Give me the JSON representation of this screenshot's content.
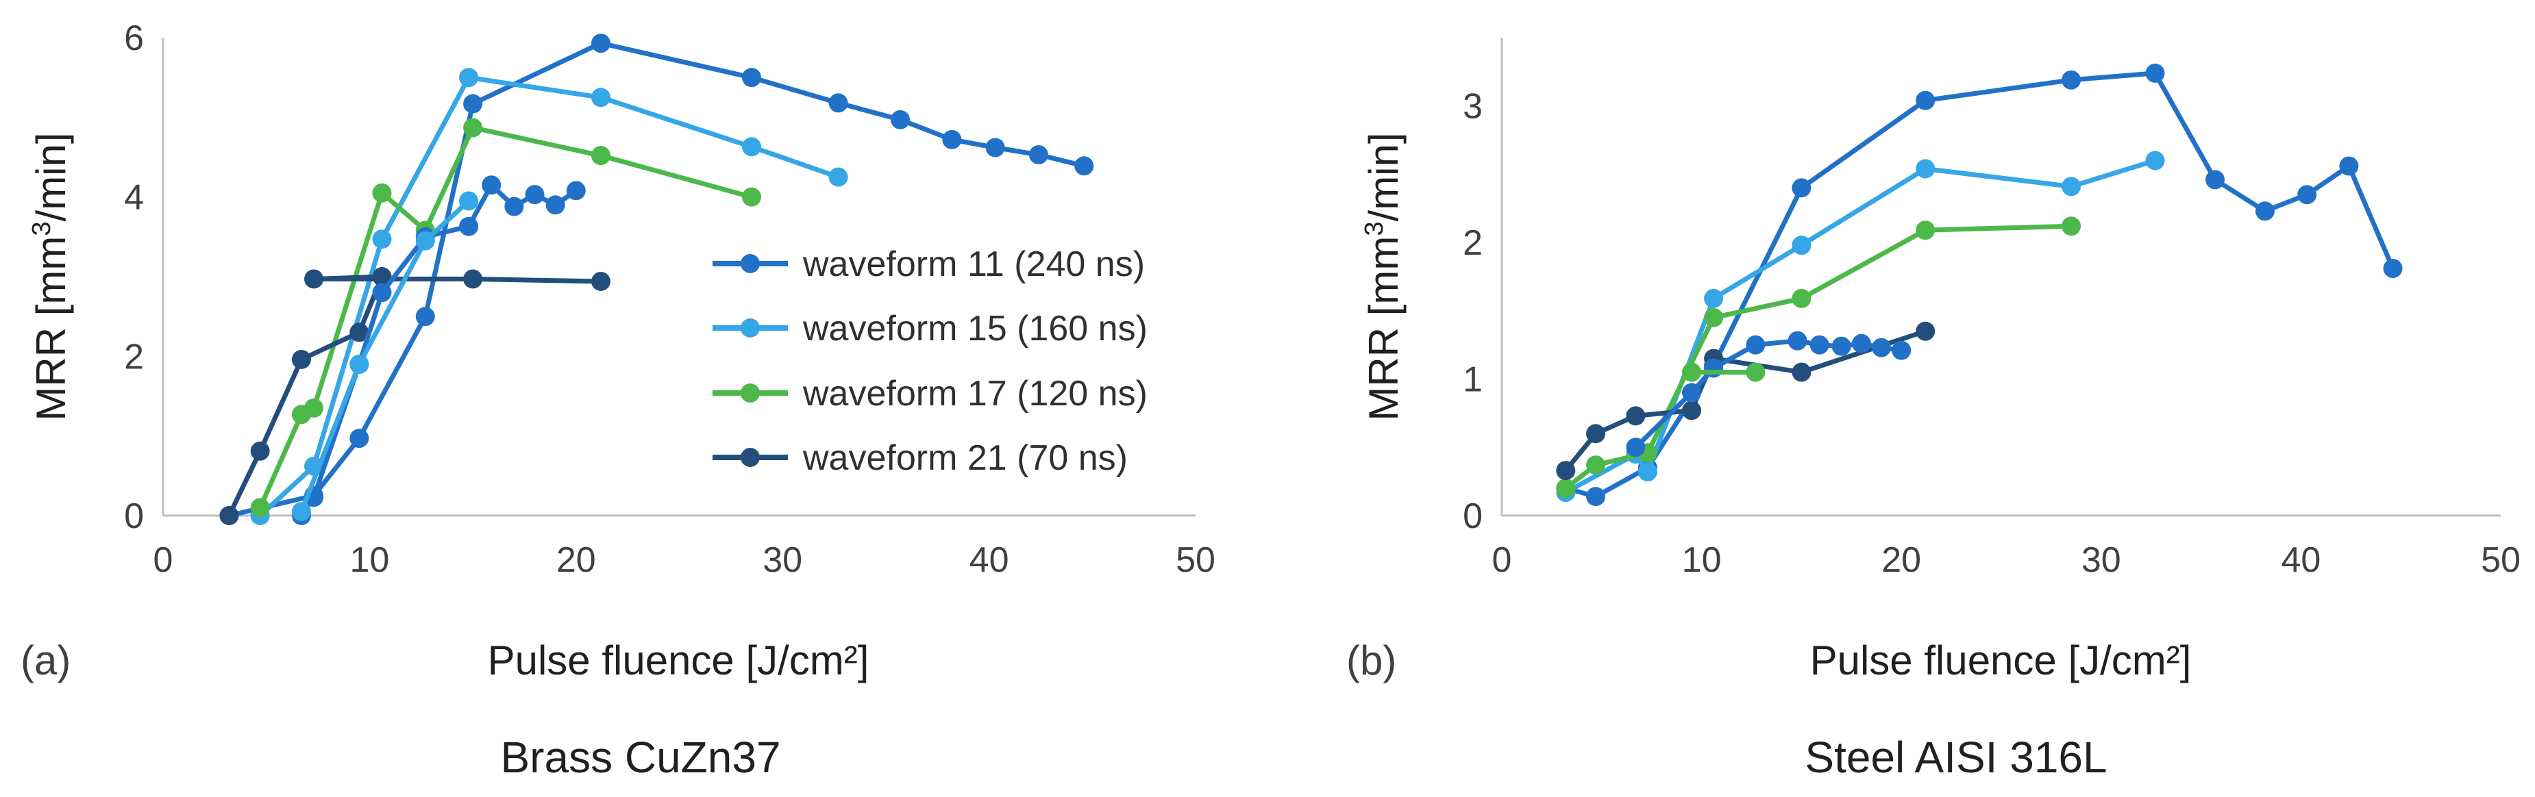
{
  "chart_data": [
    {
      "type": "line",
      "panel_label": "(a)",
      "caption": "Brass CuZn37",
      "xlabel": "Pulse fluence [J/cm²]",
      "ylabel_main": "MRR [mm",
      "ylabel_sup": "3",
      "ylabel_tail": "/min]",
      "xlim": [
        0,
        50
      ],
      "ylim": [
        0,
        6
      ],
      "xticks": [
        0,
        10,
        20,
        30,
        40,
        50
      ],
      "yticks": [
        0,
        2,
        4,
        6
      ],
      "grid": false,
      "legend": "right",
      "series": [
        {
          "name": "waveform 11 (240 ns)",
          "color": "#2271c8",
          "points": [
            [
              3.2,
              0.0
            ],
            [
              7.3,
              0.25
            ],
            [
              9.5,
              0.97
            ],
            [
              12.7,
              2.5
            ],
            [
              15.0,
              5.17
            ],
            [
              21.2,
              5.93
            ],
            [
              28.5,
              5.5
            ],
            [
              32.7,
              5.18
            ],
            [
              35.7,
              4.97
            ],
            [
              38.2,
              4.72
            ],
            [
              40.3,
              4.62
            ],
            [
              42.4,
              4.53
            ],
            [
              44.6,
              4.39
            ]
          ]
        },
        {
          "name": "waveform 15 (160 ns)",
          "color": "#35a6e6",
          "points": [
            [
              4.7,
              0.0
            ],
            [
              7.3,
              0.62
            ],
            [
              10.6,
              3.47
            ],
            [
              14.8,
              5.5
            ],
            [
              21.2,
              5.25
            ],
            [
              28.5,
              4.63
            ],
            [
              32.7,
              4.25
            ]
          ]
        },
        {
          "name": "waveform 17 (120 ns)",
          "color": "#4db84a",
          "points": [
            [
              4.7,
              0.1
            ],
            [
              6.7,
              1.27
            ],
            [
              7.3,
              1.35
            ],
            [
              10.6,
              4.05
            ],
            [
              12.7,
              3.58
            ],
            [
              15.0,
              4.87
            ],
            [
              21.2,
              4.52
            ],
            [
              28.5,
              4.0
            ]
          ]
        },
        {
          "name": "waveform 21 (70 ns)",
          "color": "#234e7c",
          "points": [
            [
              3.2,
              0.0
            ],
            [
              4.7,
              0.81
            ],
            [
              6.7,
              1.96
            ],
            [
              9.5,
              2.3
            ],
            [
              10.6,
              3.0
            ],
            [
              7.3,
              2.97
            ],
            [
              15.0,
              2.97
            ],
            [
              21.2,
              2.94
            ]
          ]
        },
        {
          "name": "",
          "color": "#2271c8",
          "points": [
            [
              6.7,
              0.0
            ],
            [
              7.3,
              0.23
            ],
            [
              9.5,
              1.9
            ],
            [
              10.6,
              2.8
            ],
            [
              12.7,
              3.5
            ],
            [
              14.8,
              3.63
            ],
            [
              15.9,
              4.15
            ],
            [
              17.0,
              3.88
            ],
            [
              18.0,
              4.03
            ],
            [
              19.0,
              3.9
            ],
            [
              20.0,
              4.08
            ]
          ]
        },
        {
          "name": "",
          "color": "#35a6e6",
          "points": [
            [
              6.7,
              0.05
            ],
            [
              9.5,
              1.9
            ],
            [
              12.7,
              3.45
            ],
            [
              14.8,
              3.95
            ]
          ]
        }
      ]
    },
    {
      "type": "line",
      "panel_label": "(b)",
      "caption": "Steel AISI 316L",
      "xlabel": "Pulse fluence [J/cm²]",
      "ylabel_main": "MRR [mm",
      "ylabel_sup": "3",
      "ylabel_tail": "/min]",
      "xlim": [
        0,
        50
      ],
      "ylim": [
        0,
        3.5
      ],
      "xticks": [
        0,
        10,
        20,
        30,
        40,
        50
      ],
      "yticks": [
        0,
        1,
        2,
        3
      ],
      "grid": false,
      "series": [
        {
          "name": "waveform 11 (240 ns)",
          "color": "#2271c8",
          "points": [
            [
              3.2,
              0.2
            ],
            [
              4.7,
              0.14
            ],
            [
              7.3,
              0.35
            ],
            [
              10.6,
              1.1
            ],
            [
              15.0,
              2.4
            ],
            [
              21.2,
              3.04
            ],
            [
              28.5,
              3.19
            ],
            [
              32.7,
              3.24
            ],
            [
              35.7,
              2.46
            ],
            [
              38.2,
              2.23
            ],
            [
              40.3,
              2.35
            ],
            [
              42.4,
              2.56
            ],
            [
              44.6,
              1.81
            ]
          ]
        },
        {
          "name": "waveform 15 (160 ns)",
          "color": "#35a6e6",
          "points": [
            [
              3.2,
              0.17
            ],
            [
              6.7,
              0.45
            ],
            [
              7.3,
              0.32
            ],
            [
              10.6,
              1.59
            ],
            [
              15.0,
              1.98
            ],
            [
              21.2,
              2.54
            ],
            [
              28.5,
              2.41
            ],
            [
              32.7,
              2.6
            ]
          ]
        },
        {
          "name": "waveform 17 (120 ns)",
          "color": "#4db84a",
          "points": [
            [
              3.2,
              0.2
            ],
            [
              4.7,
              0.37
            ],
            [
              7.3,
              0.46
            ],
            [
              10.6,
              1.45
            ],
            [
              15.0,
              1.59
            ],
            [
              21.2,
              2.09
            ],
            [
              28.5,
              2.12
            ]
          ]
        },
        {
          "name": "waveform 21 (70 ns)",
          "color": "#234e7c",
          "points": [
            [
              3.2,
              0.33
            ],
            [
              4.7,
              0.6
            ],
            [
              6.7,
              0.73
            ],
            [
              9.5,
              0.77
            ],
            [
              10.6,
              1.15
            ],
            [
              15.0,
              1.05
            ],
            [
              21.2,
              1.35
            ]
          ]
        },
        {
          "name": "",
          "color": "#2271c8",
          "points": [
            [
              6.7,
              0.5
            ],
            [
              9.5,
              0.9
            ],
            [
              10.6,
              1.08
            ],
            [
              12.7,
              1.25
            ],
            [
              14.8,
              1.28
            ],
            [
              15.9,
              1.25
            ],
            [
              17.0,
              1.24
            ],
            [
              18.0,
              1.26
            ],
            [
              19.0,
              1.23
            ],
            [
              20.0,
              1.21
            ]
          ]
        },
        {
          "name": "",
          "color": "#4db84a",
          "points": [
            [
              9.5,
              1.05
            ],
            [
              12.7,
              1.05
            ]
          ]
        }
      ]
    }
  ]
}
